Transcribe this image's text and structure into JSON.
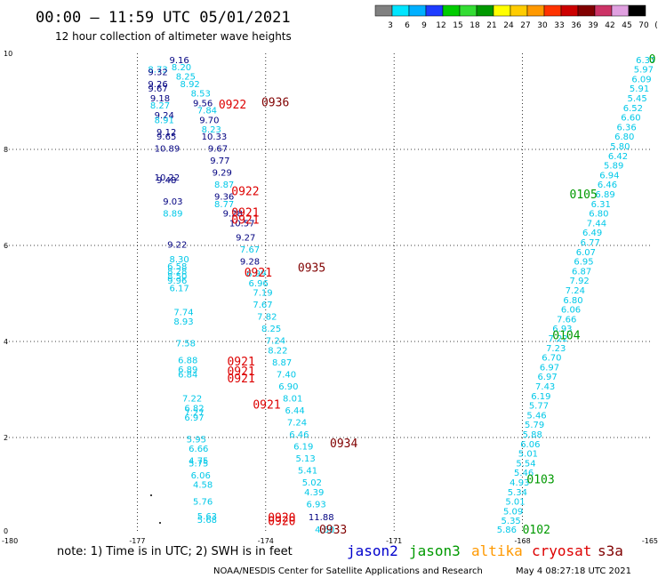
{
  "header": {
    "title": "00:00 – 11:59 UTC 05/01/2021",
    "subtitle": "12 hour collection of altimeter wave heights"
  },
  "colorbar": {
    "colors": [
      "#808080",
      "#00e5ff",
      "#00b0ff",
      "#1e3cff",
      "#00cc00",
      "#33dd33",
      "#009900",
      "#ffff00",
      "#ffcc00",
      "#ff9900",
      "#ff3300",
      "#cc0000",
      "#800000",
      "#cc3366",
      "#e0a0e0",
      "#000000"
    ],
    "labels": [
      "3",
      "6",
      "9",
      "12",
      "15",
      "18",
      "21",
      "24",
      "27",
      "30",
      "33",
      "36",
      "39",
      "42",
      "45",
      "70",
      "(ft)"
    ]
  },
  "footer": {
    "note": "note:  1) Time is in UTC;  2) SWH is in feet",
    "legend": [
      {
        "name": "jason2",
        "color": "#0000cc"
      },
      {
        "name": "jason3",
        "color": "#009900"
      },
      {
        "name": "altika",
        "color": "#ff9900"
      },
      {
        "name": "cryosat",
        "color": "#dd0000"
      },
      {
        "name": "s3a",
        "color": "#800000"
      }
    ],
    "credit": "NOAA/NESDIS Center for Satellite Applications and Research",
    "timestamp": "May  4 08:27:18 UTC 2021"
  },
  "chart_data": {
    "type": "scatter",
    "xlim": [
      -180,
      -165
    ],
    "ylim": [
      0,
      10
    ],
    "x_ticks": [
      "-180",
      "-177",
      "-174",
      "-171",
      "-168",
      "-165"
    ],
    "y_ticks": [
      "0",
      "2",
      "4",
      "6",
      "8",
      "10"
    ],
    "grid": true,
    "colors": {
      "jason2": "#0000cc",
      "jason3": "#009900",
      "altika": "#ff9900",
      "cryosat": "#dd0000",
      "s3a": "#800000",
      "swh_light": "#00c8e8",
      "swh_dark": "#000080"
    },
    "tracks": [
      {
        "sat": "s3a",
        "label": "0936",
        "x": -174.1,
        "y": 8.9
      },
      {
        "sat": "cryosat",
        "label": "0922",
        "x": -175.1,
        "y": 8.85
      },
      {
        "sat": "cryosat",
        "label": "0922",
        "x": -174.8,
        "y": 7.05
      },
      {
        "sat": "cryosat",
        "label": "0921",
        "x": -174.8,
        "y": 6.6
      },
      {
        "sat": "cryosat",
        "label": "0921",
        "x": -174.8,
        "y": 6.45
      },
      {
        "sat": "s3a",
        "label": "0935",
        "x": -173.25,
        "y": 5.45
      },
      {
        "sat": "cryosat",
        "label": "0921",
        "x": -174.5,
        "y": 5.35
      },
      {
        "sat": "cryosat",
        "label": "0921",
        "x": -174.9,
        "y": 3.5
      },
      {
        "sat": "cryosat",
        "label": "0921",
        "x": -174.9,
        "y": 3.3
      },
      {
        "sat": "cryosat",
        "label": "0921",
        "x": -174.9,
        "y": 3.15
      },
      {
        "sat": "cryosat",
        "label": "0921",
        "x": -174.3,
        "y": 2.6
      },
      {
        "sat": "s3a",
        "label": "0934",
        "x": -172.5,
        "y": 1.8
      },
      {
        "sat": "cryosat",
        "label": "0920",
        "x": -173.95,
        "y": 0.25
      },
      {
        "sat": "cryosat",
        "label": "0920",
        "x": -173.95,
        "y": 0.18
      },
      {
        "sat": "s3a",
        "label": "0933",
        "x": -172.75,
        "y": 0.0
      },
      {
        "sat": "jason3",
        "label": "0105",
        "x": -166.9,
        "y": 6.98
      },
      {
        "sat": "jason3",
        "label": "0104",
        "x": -167.3,
        "y": 4.05
      },
      {
        "sat": "jason3",
        "label": "0103",
        "x": -167.9,
        "y": 1.05
      },
      {
        "sat": "jason3",
        "label": "0102",
        "x": -168.0,
        "y": 0.0
      },
      {
        "sat": "jason3",
        "label": "0",
        "x": -165.05,
        "y": 9.8
      }
    ],
    "swh": [
      {
        "v": "9.16",
        "x": -176.25,
        "y": 9.8,
        "d": 1
      },
      {
        "v": "8.20",
        "x": -176.2,
        "y": 9.65,
        "d": 0
      },
      {
        "v": "8.73",
        "x": -176.75,
        "y": 9.6,
        "d": 0
      },
      {
        "v": "9.32",
        "x": -176.75,
        "y": 9.55,
        "d": 1
      },
      {
        "v": "8.25",
        "x": -176.1,
        "y": 9.45,
        "d": 0
      },
      {
        "v": "9.26",
        "x": -176.75,
        "y": 9.3,
        "d": 1
      },
      {
        "v": "8.92",
        "x": -176.0,
        "y": 9.3,
        "d": 0
      },
      {
        "v": "9.67",
        "x": -176.75,
        "y": 9.2,
        "d": 1
      },
      {
        "v": "8.53",
        "x": -175.75,
        "y": 9.1,
        "d": 0
      },
      {
        "v": "9.18",
        "x": -176.7,
        "y": 9.0,
        "d": 1
      },
      {
        "v": "9.56",
        "x": -175.7,
        "y": 8.9,
        "d": 1
      },
      {
        "v": "8.27",
        "x": -176.7,
        "y": 8.85,
        "d": 0
      },
      {
        "v": "7.84",
        "x": -175.6,
        "y": 8.75,
        "d": 0
      },
      {
        "v": "9.24",
        "x": -176.6,
        "y": 8.65,
        "d": 1
      },
      {
        "v": "8.91",
        "x": -176.6,
        "y": 8.55,
        "d": 0
      },
      {
        "v": "9.70",
        "x": -175.55,
        "y": 8.55,
        "d": 1
      },
      {
        "v": "8.23",
        "x": -175.5,
        "y": 8.35,
        "d": 0
      },
      {
        "v": "9.12",
        "x": -176.55,
        "y": 8.3,
        "d": 1
      },
      {
        "v": "9.65",
        "x": -176.55,
        "y": 8.2,
        "d": 1
      },
      {
        "v": "10.33",
        "x": -175.5,
        "y": 8.2,
        "d": 1
      },
      {
        "v": "10.89",
        "x": -176.6,
        "y": 7.95,
        "d": 1
      },
      {
        "v": "9.67",
        "x": -175.35,
        "y": 7.95,
        "d": 1
      },
      {
        "v": "9.77",
        "x": -175.3,
        "y": 7.7,
        "d": 1
      },
      {
        "v": "9.29",
        "x": -175.25,
        "y": 7.45,
        "d": 1
      },
      {
        "v": "10.22",
        "x": -176.6,
        "y": 7.35,
        "d": 1
      },
      {
        "v": "9.48",
        "x": -176.55,
        "y": 7.3,
        "d": 1
      },
      {
        "v": "8.87",
        "x": -175.2,
        "y": 7.2,
        "d": 0
      },
      {
        "v": "9.36",
        "x": -175.2,
        "y": 6.95,
        "d": 1
      },
      {
        "v": "9.03",
        "x": -176.4,
        "y": 6.85,
        "d": 1
      },
      {
        "v": "8.77",
        "x": -175.2,
        "y": 6.8,
        "d": 0
      },
      {
        "v": "8.89",
        "x": -176.4,
        "y": 6.6,
        "d": 0
      },
      {
        "v": "9.28",
        "x": -175.0,
        "y": 6.6,
        "d": 1
      },
      {
        "v": "10.57",
        "x": -174.85,
        "y": 6.4,
        "d": 1
      },
      {
        "v": "9.27",
        "x": -174.7,
        "y": 6.1,
        "d": 1
      },
      {
        "v": "9.22",
        "x": -176.3,
        "y": 5.95,
        "d": 1
      },
      {
        "v": "7.67",
        "x": -174.6,
        "y": 5.85,
        "d": 0
      },
      {
        "v": "8.30",
        "x": -176.25,
        "y": 5.65,
        "d": 0
      },
      {
        "v": "9.28",
        "x": -174.6,
        "y": 5.6,
        "d": 1
      },
      {
        "v": "6.58",
        "x": -176.3,
        "y": 5.5,
        "d": 0
      },
      {
        "v": "8.28",
        "x": -176.3,
        "y": 5.4,
        "d": 0
      },
      {
        "v": "6.99",
        "x": -174.45,
        "y": 5.35,
        "d": 0
      },
      {
        "v": "8.50",
        "x": -176.3,
        "y": 5.3,
        "d": 0
      },
      {
        "v": "9.96",
        "x": -176.3,
        "y": 5.2,
        "d": 0
      },
      {
        "v": "6.96",
        "x": -174.4,
        "y": 5.15,
        "d": 0
      },
      {
        "v": "6.17",
        "x": -176.25,
        "y": 5.05,
        "d": 0
      },
      {
        "v": "7.19",
        "x": -174.3,
        "y": 4.95,
        "d": 0
      },
      {
        "v": "7.67",
        "x": -174.3,
        "y": 4.7,
        "d": 0
      },
      {
        "v": "7.74",
        "x": -176.15,
        "y": 4.55,
        "d": 0
      },
      {
        "v": "7.82",
        "x": -174.2,
        "y": 4.45,
        "d": 0
      },
      {
        "v": "8.93",
        "x": -176.15,
        "y": 4.35,
        "d": 0
      },
      {
        "v": "8.25",
        "x": -174.1,
        "y": 4.2,
        "d": 0
      },
      {
        "v": "7.24",
        "x": -174.0,
        "y": 3.95,
        "d": 0
      },
      {
        "v": "7.58",
        "x": -176.1,
        "y": 3.9,
        "d": 0
      },
      {
        "v": "8.22",
        "x": -173.95,
        "y": 3.75,
        "d": 0
      },
      {
        "v": "6.88",
        "x": -176.05,
        "y": 3.55,
        "d": 0
      },
      {
        "v": "8.87",
        "x": -173.85,
        "y": 3.5,
        "d": 0
      },
      {
        "v": "6.89",
        "x": -176.05,
        "y": 3.35,
        "d": 0
      },
      {
        "v": "6.84",
        "x": -176.05,
        "y": 3.25,
        "d": 0
      },
      {
        "v": "7.40",
        "x": -173.75,
        "y": 3.25,
        "d": 0
      },
      {
        "v": "6.90",
        "x": -173.7,
        "y": 3.0,
        "d": 0
      },
      {
        "v": "7.22",
        "x": -175.95,
        "y": 2.75,
        "d": 0
      },
      {
        "v": "8.01",
        "x": -173.6,
        "y": 2.75,
        "d": 0
      },
      {
        "v": "6.82",
        "x": -175.9,
        "y": 2.55,
        "d": 0
      },
      {
        "v": "6.44",
        "x": -173.55,
        "y": 2.5,
        "d": 0
      },
      {
        "v": "7.27",
        "x": -175.9,
        "y": 2.45,
        "d": 0
      },
      {
        "v": "6.97",
        "x": -175.9,
        "y": 2.35,
        "d": 0
      },
      {
        "v": "7.24",
        "x": -173.5,
        "y": 2.25,
        "d": 0
      },
      {
        "v": "6.46",
        "x": -173.45,
        "y": 2.0,
        "d": 0
      },
      {
        "v": "5.95",
        "x": -175.85,
        "y": 1.9,
        "d": 0
      },
      {
        "v": "6.66",
        "x": -175.8,
        "y": 1.7,
        "d": 0
      },
      {
        "v": "6.19",
        "x": -173.35,
        "y": 1.75,
        "d": 0
      },
      {
        "v": "5.13",
        "x": -173.3,
        "y": 1.5,
        "d": 0
      },
      {
        "v": "4.75",
        "x": -175.8,
        "y": 1.45,
        "d": 0
      },
      {
        "v": "5.75",
        "x": -175.8,
        "y": 1.4,
        "d": 0
      },
      {
        "v": "5.41",
        "x": -173.25,
        "y": 1.25,
        "d": 0
      },
      {
        "v": "6.06",
        "x": -175.75,
        "y": 1.15,
        "d": 0
      },
      {
        "v": "5.02",
        "x": -173.15,
        "y": 1.0,
        "d": 0
      },
      {
        "v": "4.58",
        "x": -175.7,
        "y": 0.95,
        "d": 0
      },
      {
        "v": "4.39",
        "x": -173.1,
        "y": 0.8,
        "d": 0
      },
      {
        "v": "5.76",
        "x": -175.7,
        "y": 0.6,
        "d": 0
      },
      {
        "v": "6.93",
        "x": -173.05,
        "y": 0.55,
        "d": 0
      },
      {
        "v": "5.63",
        "x": -175.6,
        "y": 0.3,
        "d": 0
      },
      {
        "v": "5.68",
        "x": -175.6,
        "y": 0.22,
        "d": 0
      },
      {
        "v": "11.88",
        "x": -173.0,
        "y": 0.28,
        "d": 1
      },
      {
        "v": "4.60",
        "x": -172.85,
        "y": 0.02,
        "d": 0
      },
      {
        "v": "6.37",
        "x": -165.35,
        "y": 9.8,
        "d": 0
      },
      {
        "v": "5.97",
        "x": -165.4,
        "y": 9.6,
        "d": 0
      },
      {
        "v": "6.09",
        "x": -165.45,
        "y": 9.4,
        "d": 0
      },
      {
        "v": "5.91",
        "x": -165.5,
        "y": 9.2,
        "d": 0
      },
      {
        "v": "5.45",
        "x": -165.55,
        "y": 9.0,
        "d": 0
      },
      {
        "v": "6.52",
        "x": -165.65,
        "y": 8.8,
        "d": 0
      },
      {
        "v": "6.60",
        "x": -165.7,
        "y": 8.6,
        "d": 0
      },
      {
        "v": "6.36",
        "x": -165.8,
        "y": 8.4,
        "d": 0
      },
      {
        "v": "6.80",
        "x": -165.85,
        "y": 8.2,
        "d": 0
      },
      {
        "v": "5.80",
        "x": -165.95,
        "y": 8.0,
        "d": 0
      },
      {
        "v": "6.42",
        "x": -166.0,
        "y": 7.8,
        "d": 0
      },
      {
        "v": "5.89",
        "x": -166.1,
        "y": 7.6,
        "d": 0
      },
      {
        "v": "6.94",
        "x": -166.2,
        "y": 7.4,
        "d": 0
      },
      {
        "v": "6.46",
        "x": -166.25,
        "y": 7.2,
        "d": 0
      },
      {
        "v": "6.89",
        "x": -166.3,
        "y": 7.0,
        "d": 0
      },
      {
        "v": "6.31",
        "x": -166.4,
        "y": 6.8,
        "d": 0
      },
      {
        "v": "6.80",
        "x": -166.45,
        "y": 6.6,
        "d": 0
      },
      {
        "v": "7.44",
        "x": -166.5,
        "y": 6.4,
        "d": 0
      },
      {
        "v": "6.49",
        "x": -166.6,
        "y": 6.2,
        "d": 0
      },
      {
        "v": "6.77",
        "x": -166.65,
        "y": 6.0,
        "d": 0
      },
      {
        "v": "6.07",
        "x": -166.75,
        "y": 5.8,
        "d": 0
      },
      {
        "v": "6.95",
        "x": -166.8,
        "y": 5.6,
        "d": 0
      },
      {
        "v": "6.87",
        "x": -166.85,
        "y": 5.4,
        "d": 0
      },
      {
        "v": "7.92",
        "x": -166.9,
        "y": 5.2,
        "d": 0
      },
      {
        "v": "7.24",
        "x": -167.0,
        "y": 5.0,
        "d": 0
      },
      {
        "v": "6.80",
        "x": -167.05,
        "y": 4.8,
        "d": 0
      },
      {
        "v": "6.06",
        "x": -167.1,
        "y": 4.6,
        "d": 0
      },
      {
        "v": "7.66",
        "x": -167.2,
        "y": 4.4,
        "d": 0
      },
      {
        "v": "6.93",
        "x": -167.3,
        "y": 4.2,
        "d": 0
      },
      {
        "v": "7.22",
        "x": -167.4,
        "y": 4.0,
        "d": 0
      },
      {
        "v": "7.23",
        "x": -167.45,
        "y": 3.8,
        "d": 0
      },
      {
        "v": "6.70",
        "x": -167.55,
        "y": 3.6,
        "d": 0
      },
      {
        "v": "6.97",
        "x": -167.6,
        "y": 3.4,
        "d": 0
      },
      {
        "v": "6.97",
        "x": -167.65,
        "y": 3.2,
        "d": 0
      },
      {
        "v": "7.43",
        "x": -167.7,
        "y": 3.0,
        "d": 0
      },
      {
        "v": "6.19",
        "x": -167.8,
        "y": 2.8,
        "d": 0
      },
      {
        "v": "5.77",
        "x": -167.85,
        "y": 2.6,
        "d": 0
      },
      {
        "v": "5.46",
        "x": -167.9,
        "y": 2.4,
        "d": 0
      },
      {
        "v": "5.79",
        "x": -167.95,
        "y": 2.2,
        "d": 0
      },
      {
        "v": "5.88",
        "x": -168.0,
        "y": 2.0,
        "d": 0
      },
      {
        "v": "6.06",
        "x": -168.05,
        "y": 1.8,
        "d": 0
      },
      {
        "v": "5.01",
        "x": -168.1,
        "y": 1.6,
        "d": 0
      },
      {
        "v": "5.54",
        "x": -168.15,
        "y": 1.4,
        "d": 0
      },
      {
        "v": "5.46",
        "x": -168.2,
        "y": 1.2,
        "d": 0
      },
      {
        "v": "4.93",
        "x": -168.3,
        "y": 1.0,
        "d": 0
      },
      {
        "v": "5.34",
        "x": -168.35,
        "y": 0.8,
        "d": 0
      },
      {
        "v": "5.01",
        "x": -168.4,
        "y": 0.6,
        "d": 0
      },
      {
        "v": "5.09",
        "x": -168.45,
        "y": 0.4,
        "d": 0
      },
      {
        "v": "5.35",
        "x": -168.5,
        "y": 0.2,
        "d": 0
      },
      {
        "v": "5.86",
        "x": -168.6,
        "y": 0.02,
        "d": 0
      }
    ]
  }
}
